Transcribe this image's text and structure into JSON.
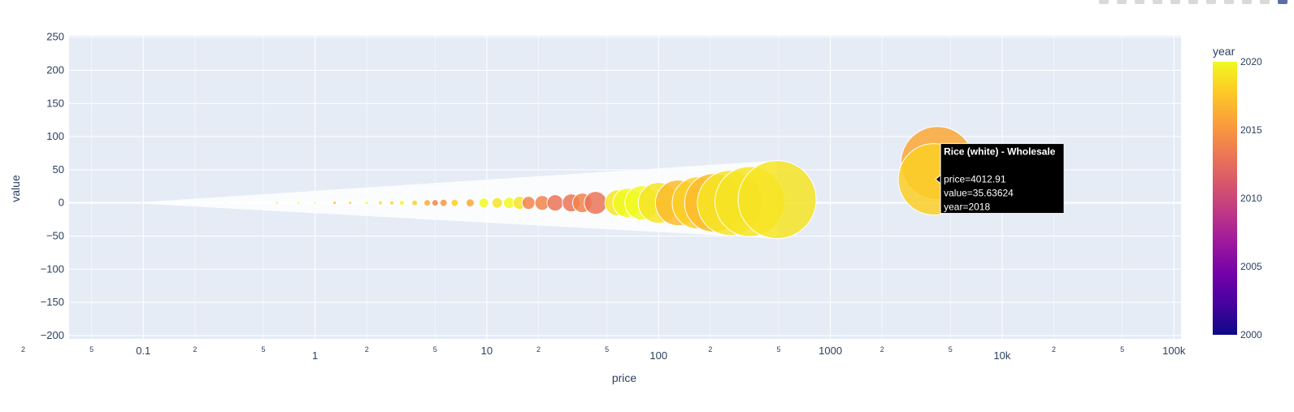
{
  "toolbar": {
    "icons": [
      "camera-icon",
      "zoom-icon",
      "pan-icon",
      "lasso-select-icon",
      "box-select-icon",
      "zoom-in-icon",
      "zoom-out-icon",
      "autoscale-icon",
      "reset-axes-icon",
      "toggle-spike-lines-icon",
      "plotly-logo-icon"
    ]
  },
  "chart_data": {
    "type": "scatter",
    "xlabel": "price",
    "ylabel": "value",
    "xscale": "log",
    "xlim": [
      0.037,
      110000
    ],
    "ylim": [
      -205,
      252
    ],
    "grid": true,
    "yticks": [
      -200,
      -150,
      -100,
      -50,
      0,
      50,
      100,
      150,
      200,
      250
    ],
    "xticks_major": [
      {
        "v": 0.1,
        "label": "0.1"
      },
      {
        "v": 1,
        "label": "1"
      },
      {
        "v": 10,
        "label": "10"
      },
      {
        "v": 100,
        "label": "100"
      },
      {
        "v": 1000,
        "label": "1000"
      },
      {
        "v": 10000,
        "label": "10k"
      },
      {
        "v": 100000,
        "label": "100k"
      }
    ],
    "xticks_minor": [
      {
        "v": 0.02,
        "label": "2"
      },
      {
        "v": 0.05,
        "label": "5"
      },
      {
        "v": 0.2,
        "label": "2"
      },
      {
        "v": 0.5,
        "label": "5"
      },
      {
        "v": 2,
        "label": "2"
      },
      {
        "v": 5,
        "label": "5"
      },
      {
        "v": 20,
        "label": "2"
      },
      {
        "v": 50,
        "label": "5"
      },
      {
        "v": 200,
        "label": "2"
      },
      {
        "v": 500,
        "label": "5"
      },
      {
        "v": 2000,
        "label": "2"
      },
      {
        "v": 5000,
        "label": "5"
      },
      {
        "v": 20000,
        "label": "2"
      },
      {
        "v": 50000,
        "label": "5"
      }
    ],
    "color_axis": {
      "title": "year",
      "range": [
        2000,
        2020
      ],
      "ticks": [
        2000,
        2005,
        2010,
        2015,
        2020
      ],
      "colorscale": [
        "#0d0887",
        "#46039f",
        "#7201a8",
        "#9c179e",
        "#bd3786",
        "#d8576b",
        "#ed7953",
        "#fb9f3a",
        "#fdca26",
        "#f0f921"
      ]
    },
    "points": [
      {
        "x": 0.3,
        "y": 0,
        "size": 1,
        "year": 2019
      },
      {
        "x": 0.4,
        "y": 0,
        "size": 1,
        "year": 2020
      },
      {
        "x": 0.6,
        "y": 0,
        "size": 1.5,
        "year": 2018
      },
      {
        "x": 0.8,
        "y": 0,
        "size": 1.5,
        "year": 2019
      },
      {
        "x": 1.0,
        "y": 0,
        "size": 1.5,
        "year": 2020
      },
      {
        "x": 1.3,
        "y": 0,
        "size": 2,
        "year": 2017
      },
      {
        "x": 1.6,
        "y": 0,
        "size": 2,
        "year": 2018
      },
      {
        "x": 2.0,
        "y": 0,
        "size": 2,
        "year": 2020
      },
      {
        "x": 2.4,
        "y": 0,
        "size": 2.5,
        "year": 2019
      },
      {
        "x": 2.8,
        "y": 0,
        "size": 2.5,
        "year": 2018
      },
      {
        "x": 3.2,
        "y": 0,
        "size": 3,
        "year": 2020
      },
      {
        "x": 3.8,
        "y": 0,
        "size": 3.5,
        "year": 2018
      },
      {
        "x": 4.5,
        "y": 0,
        "size": 4,
        "year": 2016
      },
      {
        "x": 5.0,
        "y": 0,
        "size": 4,
        "year": 2014
      },
      {
        "x": 5.6,
        "y": 0,
        "size": 4.5,
        "year": 2015
      },
      {
        "x": 6.5,
        "y": 0,
        "size": 4.5,
        "year": 2018
      },
      {
        "x": 8.0,
        "y": 0,
        "size": 5,
        "year": 2016
      },
      {
        "x": 9.6,
        "y": 0,
        "size": 6,
        "year": 2020
      },
      {
        "x": 11.5,
        "y": 0,
        "size": 6.5,
        "year": 2019
      },
      {
        "x": 13.5,
        "y": 0,
        "size": 7,
        "year": 2020
      },
      {
        "x": 15.5,
        "y": 0,
        "size": 8,
        "year": 2019
      },
      {
        "x": 17.5,
        "y": 0,
        "size": 8,
        "year": 2014
      },
      {
        "x": 21,
        "y": 0,
        "size": 9,
        "year": 2014
      },
      {
        "x": 25,
        "y": 0,
        "size": 10,
        "year": 2013
      },
      {
        "x": 31,
        "y": 0,
        "size": 11,
        "year": 2013
      },
      {
        "x": 36,
        "y": 0,
        "size": 12,
        "year": 2014
      },
      {
        "x": 43,
        "y": 0,
        "size": 14,
        "year": 2013
      },
      {
        "x": 58,
        "y": 0,
        "size": 16,
        "year": 2019
      },
      {
        "x": 66,
        "y": 0,
        "size": 18,
        "year": 2020
      },
      {
        "x": 80,
        "y": 0,
        "size": 21,
        "year": 2020
      },
      {
        "x": 100,
        "y": 0,
        "size": 25,
        "year": 2019
      },
      {
        "x": 130,
        "y": 0,
        "size": 28,
        "year": 2017
      },
      {
        "x": 170,
        "y": 0,
        "size": 32,
        "year": 2018
      },
      {
        "x": 210,
        "y": 0,
        "size": 36,
        "year": 2017
      },
      {
        "x": 260,
        "y": 0,
        "size": 40,
        "year": 2019
      },
      {
        "x": 340,
        "y": 2,
        "size": 43,
        "year": 2019
      },
      {
        "x": 490,
        "y": 5,
        "size": 48,
        "year": 2019
      },
      {
        "x": 4200,
        "y": 60,
        "size": 45,
        "year": 2016
      },
      {
        "x": 4012.91,
        "y": 35.63624,
        "size": 44,
        "year": 2018
      }
    ],
    "hover": {
      "title": "Rice (white) - Wholesale",
      "lines": [
        "price=4012.91",
        "value=35.63624",
        "year=2018"
      ]
    }
  }
}
